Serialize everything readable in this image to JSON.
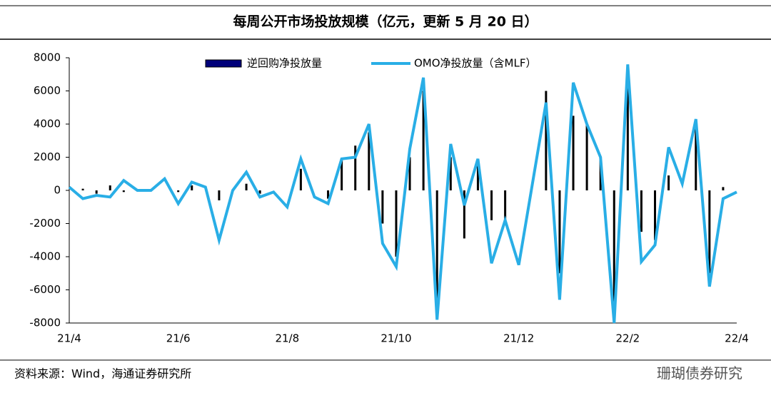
{
  "chart_data": {
    "type": "bar_line",
    "title": "每周公开市场投放规模（亿元，更新 5 月 20 日）",
    "source": "资料来源：Wind，海通证券研究所",
    "watermark": "珊瑚债券研究",
    "categories": [
      "21/4",
      null,
      null,
      null,
      null,
      null,
      null,
      null,
      "21/6",
      null,
      null,
      null,
      null,
      null,
      null,
      null,
      "21/8",
      null,
      null,
      null,
      null,
      null,
      null,
      null,
      "21/10",
      null,
      null,
      null,
      null,
      null,
      null,
      null,
      null,
      "21/12",
      null,
      null,
      null,
      null,
      null,
      null,
      null,
      "22/2",
      null,
      null,
      null,
      null,
      null,
      null,
      null,
      "22/4"
    ],
    "series": [
      {
        "name": "逆回购净投放量",
        "color": "#000000",
        "kind": "bar",
        "values": [
          0,
          100,
          -200,
          300,
          -100,
          0,
          0,
          0,
          -100,
          300,
          0,
          -600,
          0,
          400,
          -200,
          0,
          0,
          1300,
          0,
          -500,
          1900,
          2700,
          3500,
          -2000,
          -4000,
          2000,
          6000,
          -7000,
          2000,
          -2900,
          1500,
          -1800,
          -1800,
          0,
          0,
          6000,
          -5000,
          4500,
          4000,
          2000,
          -7000,
          6500,
          -2500,
          -3000,
          900,
          0,
          4300,
          -5000,
          200,
          0
        ]
      },
      {
        "name": "OMO净投放量（含MLF）",
        "color": "#29aee6",
        "kind": "line",
        "values": [
          200,
          -500,
          -300,
          -400,
          600,
          0,
          0,
          700,
          -800,
          500,
          200,
          -3000,
          0,
          1100,
          -400,
          -100,
          -1000,
          1900,
          -400,
          -800,
          1900,
          2000,
          4000,
          -3200,
          -4600,
          2500,
          6800,
          -7800,
          2800,
          -900,
          1900,
          -4400,
          -1800,
          -4500,
          400,
          5300,
          -6600,
          6500,
          4000,
          2000,
          -8000,
          7600,
          -4300,
          -3300,
          2600,
          400,
          4300,
          -5800,
          -500,
          -100
        ]
      }
    ],
    "ylim": [
      -8000,
      8000
    ],
    "yticks": [
      -8000,
      -6000,
      -4000,
      -2000,
      0,
      2000,
      4000,
      6000,
      8000
    ]
  }
}
